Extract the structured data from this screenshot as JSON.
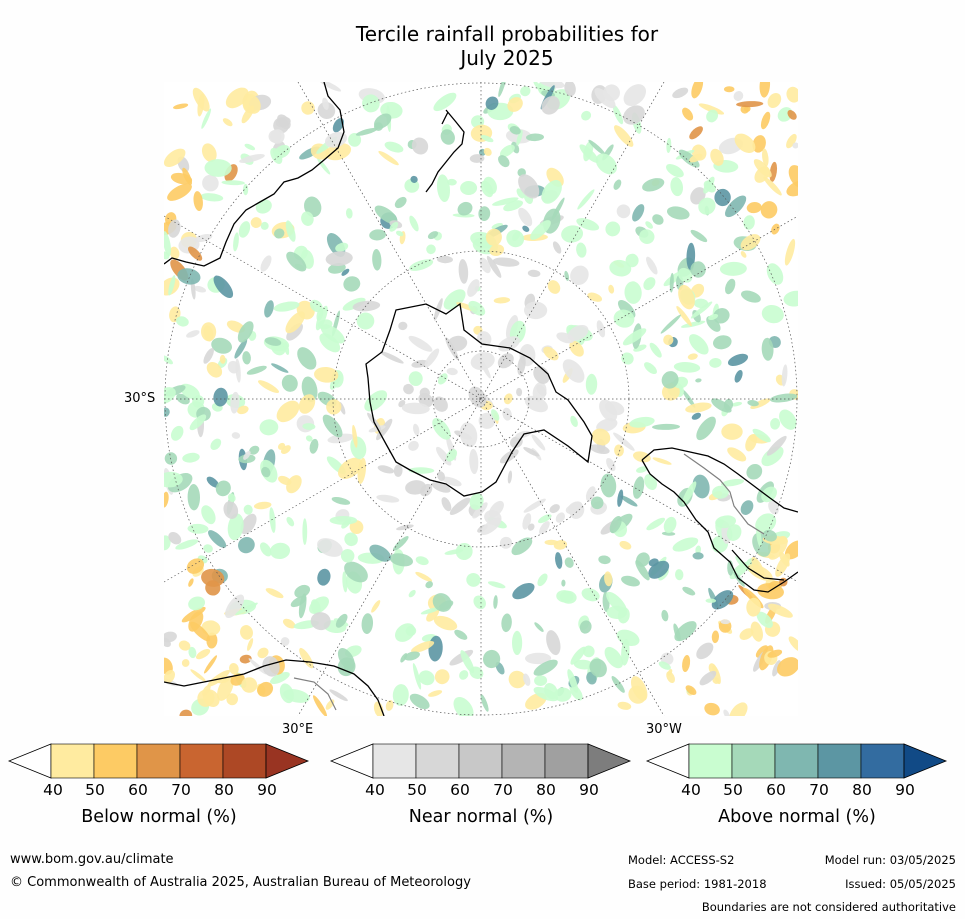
{
  "title": {
    "line1": "Tercile rainfall probabilities for",
    "line2": "July 2025"
  },
  "map": {
    "projection": "south-polar-stereographic",
    "lat_labels": [
      "30°S"
    ],
    "lon_labels": [
      "30°E",
      "30°W"
    ],
    "colors": {
      "ocean": "#ffffff",
      "coastline": "#000000",
      "boundary": "#808080",
      "grid": "#555555"
    }
  },
  "colorbars": [
    {
      "title": "Below normal (%)",
      "ticks": [
        "40",
        "50",
        "60",
        "70",
        "80",
        "90"
      ],
      "colors": [
        "#ffffff",
        "#ffeba0",
        "#fdcb64",
        "#e09548",
        "#c96530",
        "#ad4825",
        "#993422"
      ]
    },
    {
      "title": "Near normal (%)",
      "ticks": [
        "40",
        "50",
        "60",
        "70",
        "80",
        "90"
      ],
      "colors": [
        "#ffffff",
        "#e6e6e6",
        "#d7d7d7",
        "#c8c8c8",
        "#b4b4b4",
        "#a0a0a0",
        "#7d7d7d"
      ]
    },
    {
      "title": "Above normal (%)",
      "ticks": [
        "40",
        "50",
        "60",
        "70",
        "80",
        "90"
      ],
      "colors": [
        "#ffffff",
        "#c9fdd0",
        "#a5d9b9",
        "#7fb7b0",
        "#5c96a3",
        "#336ca0",
        "#114a86"
      ]
    }
  ],
  "footer": {
    "website": "www.bom.gov.au/climate",
    "copyright": "© Commonwealth of Australia 2025, Australian Bureau of Meteorology",
    "model": "Model: ACCESS-S2",
    "base_period": "Base period: 1981-2018",
    "model_run": "Model run: 03/05/2025",
    "issued": "Issued: 05/05/2025",
    "disclaimer": "Boundaries are not considered authoritative"
  }
}
